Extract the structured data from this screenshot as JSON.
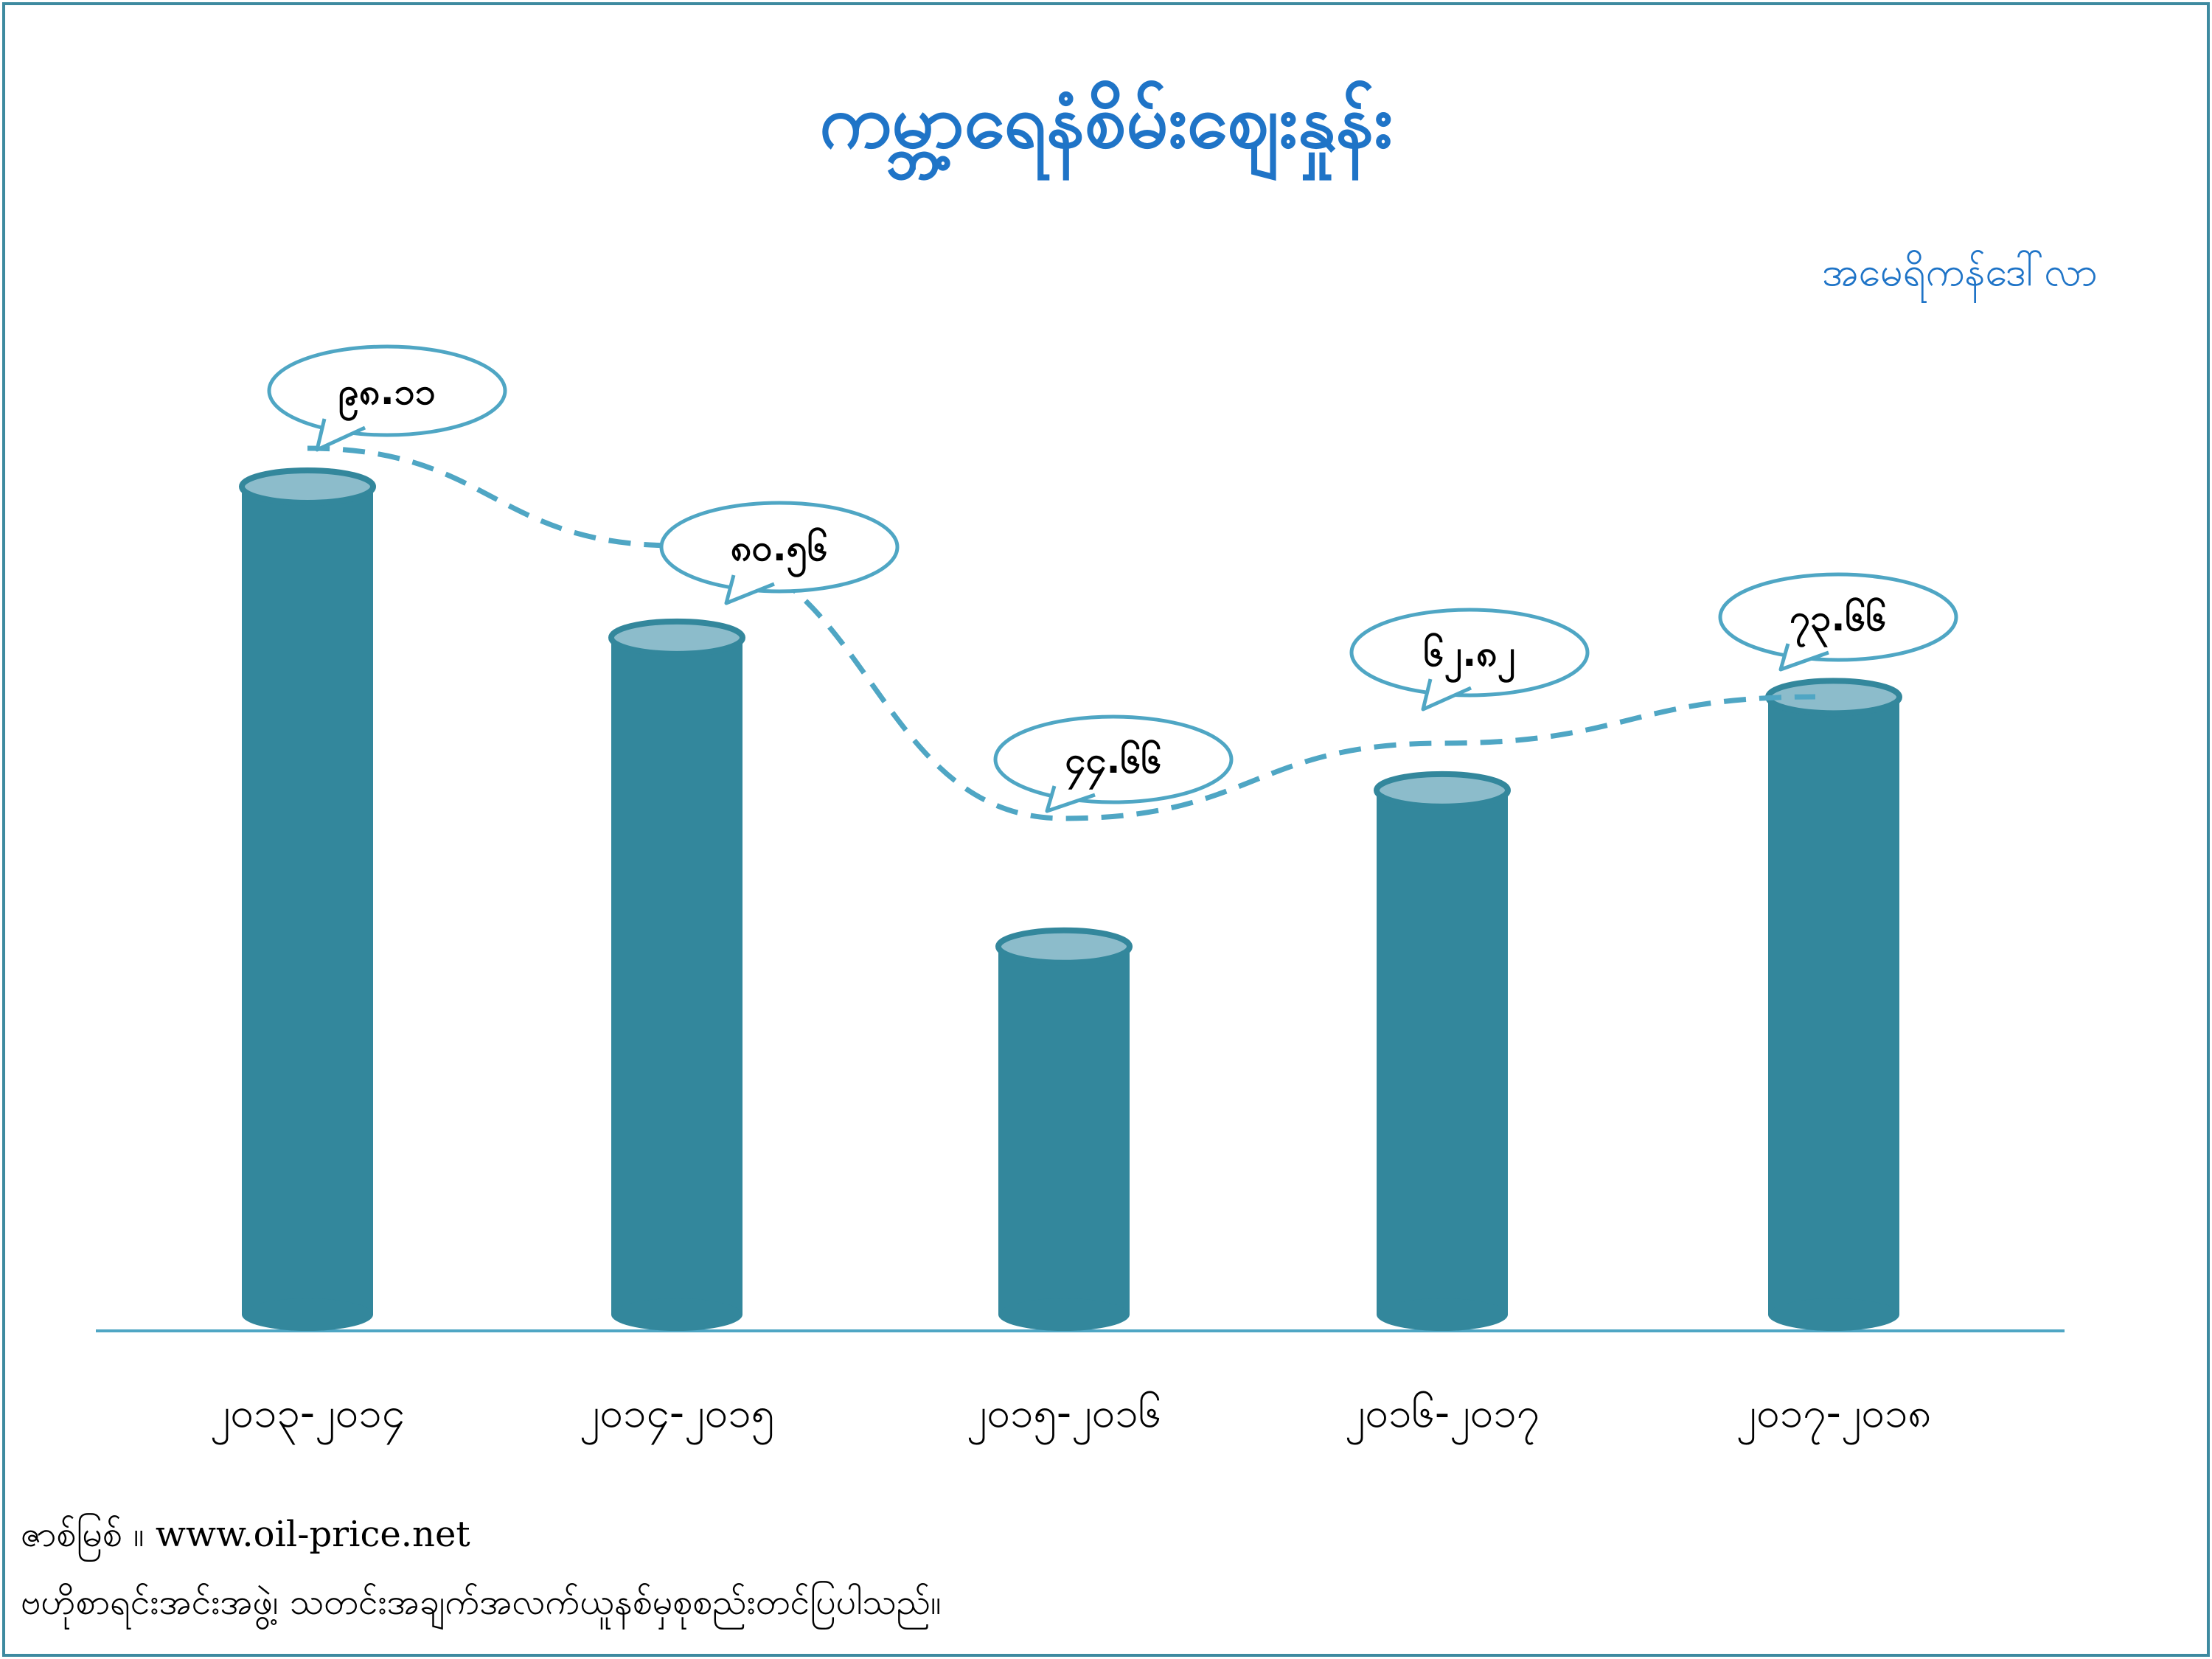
{
  "title": "ကမ္ဘာ့ရေနံစိမ်းဈေးနှုန်း",
  "unit": "အမေရိကန်ဒေါ်လာ",
  "source_line": "ဇာစ်မြစ် ။ www.oil-price.net",
  "note_line": "ဗဟိုစာရင်းအင်းအဖွဲ့၊ သတင်းအချက်အလက်ယူနစ်မှစုစည်းတင်ပြပါသည်။",
  "colors": {
    "bar": "#33879c",
    "bar_top": "#8cbccb",
    "line": "#4fa6c4",
    "bubble_border": "#4fa6c4",
    "title": "#1f74c7",
    "axis": "#4fa6c4"
  },
  "chart_data": {
    "type": "bar",
    "categories": [
      "၂၀၁၃-၂၀၁၄",
      "၂၀၁၄-၂၀၁၅",
      "၂၀၁၅-၂၀၁၆",
      "၂၀၁၆-၂၀၁၇",
      "၂၀၁၇-၂၀၁၈"
    ],
    "values": [
      98.11,
      80.56,
      44.66,
      62.82,
      73.66
    ],
    "value_labels": [
      "၉၈.၁၁",
      "၈၀.၅၆",
      "၄၄.၆၆",
      "၆၂.၈၂",
      "၇၃.၆၆"
    ],
    "title": "ကမ္ဘာ့ရေနံစိမ်းဈေးနှုန်း",
    "ylabel": "အမေရိကန်ဒေါ်လာ",
    "ylim": [
      0,
      100
    ],
    "grid": false,
    "legend": "none",
    "trend_line": "dashed"
  }
}
